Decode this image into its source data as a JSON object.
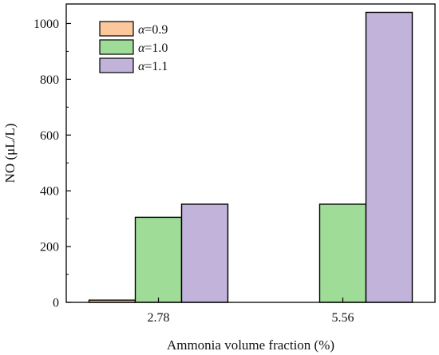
{
  "chart_data": {
    "type": "bar",
    "categories": [
      "2.78",
      "5.56"
    ],
    "series": [
      {
        "name_symbol": "α",
        "name_rest": "=0.9",
        "values": [
          8,
          0
        ],
        "color": "#fcc89b"
      },
      {
        "name_symbol": "α",
        "name_rest": "=1.0",
        "values": [
          305,
          352
        ],
        "color": "#9fdc98"
      },
      {
        "name_symbol": "α",
        "name_rest": "=1.1",
        "values": [
          352,
          1040
        ],
        "color": "#c1b3da"
      }
    ],
    "xlabel": "Ammonia volume fraction (%)",
    "ylabel": "NO (μL/L)",
    "ylim": [
      0,
      1070
    ],
    "yticks": [
      0,
      200,
      400,
      600,
      800,
      1000
    ],
    "legend_position": "top-left",
    "grid": false
  }
}
